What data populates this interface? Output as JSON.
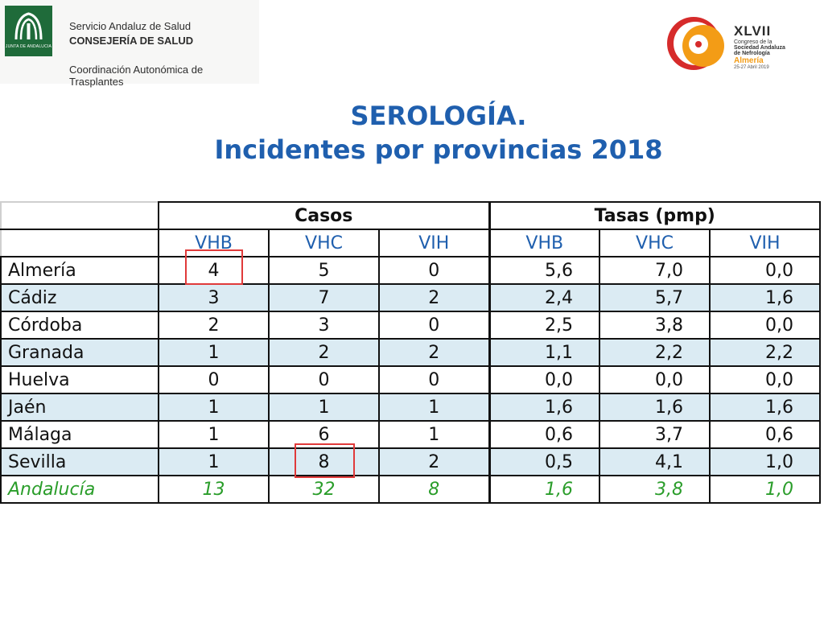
{
  "header": {
    "left_logo": {
      "emblem_text": "JUNTA DE ANDALUCIA",
      "line1": "Servicio Andaluz de Salud",
      "line2": "CONSEJERÍA DE SALUD",
      "line3": "Coordinación Autonómica de Trasplantes"
    },
    "right_logo": {
      "number": "XLVII",
      "line1": "Congreso de la",
      "line2": "Sociedad Andaluza",
      "line3": "de Nefrología",
      "city": "Almería",
      "dates": "25-27 Abril 2019"
    }
  },
  "title": {
    "line1": "SEROLOGÍA.",
    "line2": "Incidentes por provincias 2018"
  },
  "table": {
    "groups": [
      "Casos",
      "Tasas (pmp)"
    ],
    "subheaders": [
      "VHB",
      "VHC",
      "VIH",
      "VHB",
      "VHC",
      "VIH"
    ],
    "rows": [
      {
        "label": "Almería",
        "values": [
          "4",
          "5",
          "0",
          "5,6",
          "7,0",
          "0,0"
        ]
      },
      {
        "label": "Cádiz",
        "values": [
          "3",
          "7",
          "2",
          "2,4",
          "5,7",
          "1,6"
        ]
      },
      {
        "label": "Córdoba",
        "values": [
          "2",
          "3",
          "0",
          "2,5",
          "3,8",
          "0,0"
        ]
      },
      {
        "label": "Granada",
        "values": [
          "1",
          "2",
          "2",
          "1,1",
          "2,2",
          "2,2"
        ]
      },
      {
        "label": "Huelva",
        "values": [
          "0",
          "0",
          "0",
          "0,0",
          "0,0",
          "0,0"
        ]
      },
      {
        "label": "Jaén",
        "values": [
          "1",
          "1",
          "1",
          "1,6",
          "1,6",
          "1,6"
        ]
      },
      {
        "label": "Málaga",
        "values": [
          "1",
          "6",
          "1",
          "0,6",
          "3,7",
          "0,6"
        ]
      },
      {
        "label": "Sevilla",
        "values": [
          "1",
          "8",
          "2",
          "0,5",
          "4,1",
          "1,0"
        ]
      }
    ],
    "total": {
      "label": "Andalucía",
      "values": [
        "13",
        "32",
        "8",
        "1,6",
        "3,8",
        "1,0"
      ]
    }
  },
  "colors": {
    "title": "#1f5fae",
    "subheader": "#1f5fae",
    "shaded_row": "#dbebf3",
    "total_row": "#2a9d2a",
    "highlight": "#e03a3a"
  }
}
